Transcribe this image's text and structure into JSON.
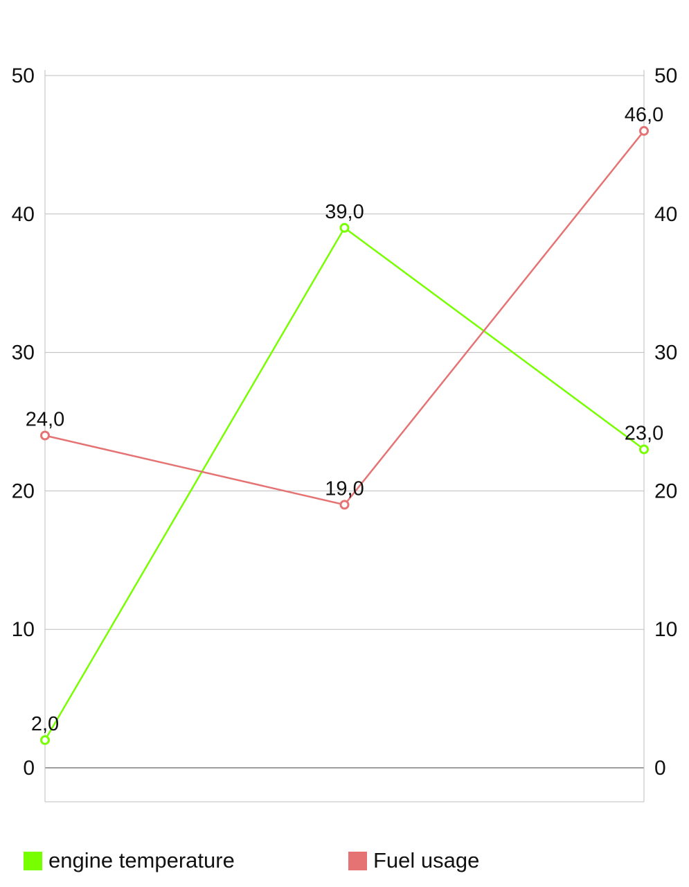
{
  "chart_data": {
    "type": "line",
    "categories": [
      "",
      "",
      ""
    ],
    "ylim": [
      0,
      50
    ],
    "yticks": [
      0,
      10,
      20,
      30,
      40,
      50
    ],
    "y2lim": [
      0,
      50
    ],
    "y2ticks": [
      0,
      10,
      20,
      30,
      40,
      50
    ],
    "grid": true,
    "legend_position": "bottom",
    "series": [
      {
        "name": "engine temperature",
        "color": "#77ff00",
        "values": [
          2.0,
          39.0,
          23.0
        ],
        "labels": [
          "2,0",
          "39,0",
          "23,0"
        ]
      },
      {
        "name": "Fuel usage",
        "color": "#e57373",
        "values": [
          24.0,
          19.0,
          46.0
        ],
        "labels": [
          "24,0",
          "19,0",
          "46,0"
        ]
      }
    ]
  }
}
